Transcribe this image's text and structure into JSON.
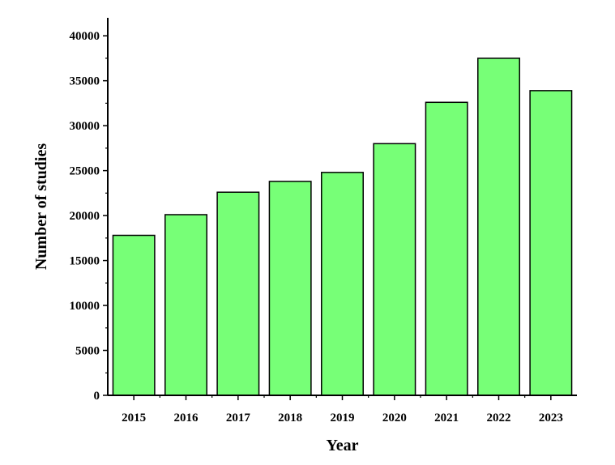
{
  "chart_data": {
    "type": "bar",
    "categories": [
      "2015",
      "2016",
      "2017",
      "2018",
      "2019",
      "2020",
      "2021",
      "2022",
      "2023"
    ],
    "values": [
      17800,
      20100,
      22600,
      23800,
      24800,
      28000,
      32600,
      37500,
      33900
    ],
    "title": "",
    "xlabel": "Year",
    "ylabel": "Number of studies",
    "ylim": [
      0,
      42000
    ],
    "yticks": [
      0,
      5000,
      10000,
      15000,
      20000,
      25000,
      30000,
      35000,
      40000
    ],
    "grid": false,
    "colors": {
      "bar_fill": "#77ff77",
      "bar_stroke": "#000000",
      "axis": "#000000"
    }
  }
}
